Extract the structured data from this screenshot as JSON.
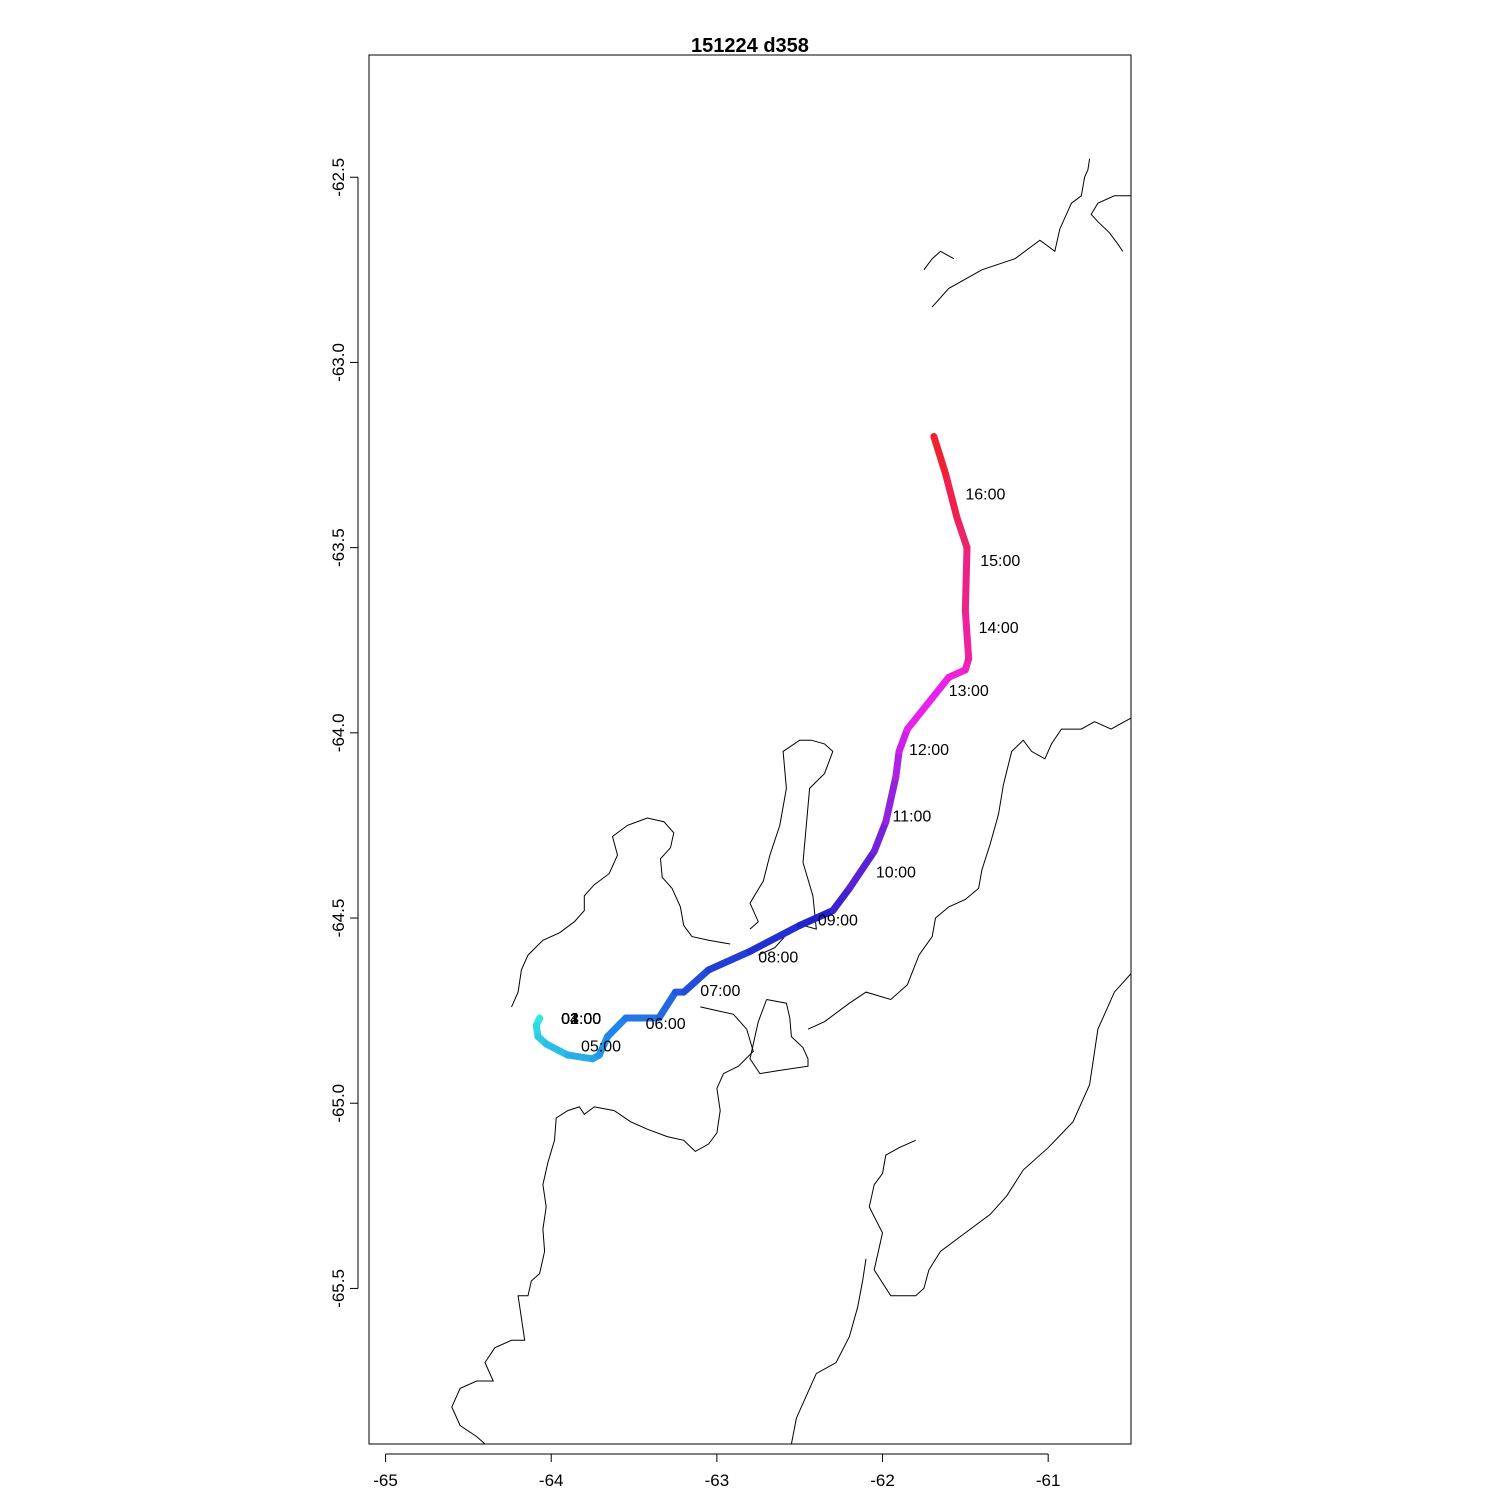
{
  "title": "151224   d358",
  "x_axis": {
    "ticks": [
      {
        "value": -65,
        "label": "-65"
      },
      {
        "value": -64,
        "label": "-64"
      },
      {
        "value": -63,
        "label": "-63"
      },
      {
        "value": -62,
        "label": "-62"
      },
      {
        "value": -61,
        "label": "-61"
      }
    ],
    "range": [
      -65.1,
      -60.5
    ]
  },
  "y_axis": {
    "ticks": [
      {
        "value": -62.5,
        "label": "-62.5"
      },
      {
        "value": -63.0,
        "label": "-63.0"
      },
      {
        "value": -63.5,
        "label": "-63.5"
      },
      {
        "value": -64.0,
        "label": "-64.0"
      },
      {
        "value": -64.5,
        "label": "-64.5"
      },
      {
        "value": -65.0,
        "label": "-65.0"
      },
      {
        "value": -65.5,
        "label": "-65.5"
      }
    ],
    "range": [
      -65.92,
      -62.17
    ]
  },
  "track": {
    "start_color": "#33eedd",
    "end_color": "#ee2222",
    "points": [
      [
        -64.07,
        -64.77
      ],
      [
        -64.09,
        -64.79
      ],
      [
        -64.08,
        -64.82
      ],
      [
        -64.03,
        -64.84
      ],
      [
        -63.9,
        -64.87
      ],
      [
        -63.75,
        -64.88
      ],
      [
        -63.71,
        -64.87
      ],
      [
        -63.66,
        -64.82
      ],
      [
        -63.55,
        -64.77
      ],
      [
        -63.35,
        -64.77
      ],
      [
        -63.25,
        -64.7
      ],
      [
        -63.2,
        -64.7
      ],
      [
        -63.05,
        -64.64
      ],
      [
        -62.8,
        -64.59
      ],
      [
        -62.5,
        -64.52
      ],
      [
        -62.3,
        -64.48
      ],
      [
        -62.2,
        -64.42
      ],
      [
        -62.05,
        -64.32
      ],
      [
        -61.98,
        -64.24
      ],
      [
        -61.92,
        -64.12
      ],
      [
        -61.9,
        -64.05
      ],
      [
        -61.85,
        -63.99
      ],
      [
        -61.6,
        -63.85
      ],
      [
        -61.5,
        -63.83
      ],
      [
        -61.48,
        -63.8
      ],
      [
        -61.5,
        -63.67
      ],
      [
        -61.49,
        -63.5
      ],
      [
        -61.55,
        -63.42
      ],
      [
        -61.62,
        -63.3
      ],
      [
        -61.69,
        -63.2
      ]
    ],
    "time_labels": [
      {
        "label": "05:00",
        "lon": -63.82,
        "lat": -64.86
      },
      {
        "label": "06:00",
        "lon": -63.43,
        "lat": -64.8
      },
      {
        "label": "07:00",
        "lon": -63.1,
        "lat": -64.71
      },
      {
        "label": "08:00",
        "lon": -62.75,
        "lat": -64.62
      },
      {
        "label": "09:00",
        "lon": -62.39,
        "lat": -64.52
      },
      {
        "label": "10:00",
        "lon": -62.04,
        "lat": -64.39
      },
      {
        "label": "11:00",
        "lon": -61.94,
        "lat": -64.24
      },
      {
        "label": "12:00",
        "lon": -61.84,
        "lat": -64.06
      },
      {
        "label": "13:00",
        "lon": -61.6,
        "lat": -63.9
      },
      {
        "label": "14:00",
        "lon": -61.42,
        "lat": -63.73
      },
      {
        "label": "15:00",
        "lon": -61.41,
        "lat": -63.55
      },
      {
        "label": "16:00",
        "lon": -61.5,
        "lat": -63.37
      }
    ],
    "overlap_labels": [
      "01:00",
      "02:00",
      "03:00",
      "04:00"
    ],
    "overlap_position": {
      "lon": -63.94,
      "lat": -64.77
    }
  },
  "coastlines": [
    [
      [
        -64.24,
        -64.74
      ],
      [
        -64.2,
        -64.7
      ],
      [
        -64.18,
        -64.64
      ],
      [
        -64.14,
        -64.6
      ],
      [
        -64.05,
        -64.56
      ],
      [
        -63.95,
        -64.54
      ],
      [
        -63.86,
        -64.51
      ],
      [
        -63.8,
        -64.48
      ],
      [
        -63.8,
        -64.44
      ],
      [
        -63.74,
        -64.41
      ],
      [
        -63.65,
        -64.38
      ],
      [
        -63.6,
        -64.33
      ],
      [
        -63.63,
        -64.28
      ],
      [
        -63.54,
        -64.25
      ],
      [
        -63.42,
        -64.23
      ],
      [
        -63.32,
        -64.24
      ],
      [
        -63.26,
        -64.27
      ],
      [
        -63.28,
        -64.31
      ],
      [
        -63.34,
        -64.34
      ],
      [
        -63.33,
        -64.39
      ],
      [
        -63.27,
        -64.42
      ],
      [
        -63.22,
        -64.47
      ],
      [
        -63.2,
        -64.52
      ],
      [
        -63.15,
        -64.55
      ],
      [
        -63.05,
        -64.56
      ],
      [
        -62.92,
        -64.57
      ]
    ],
    [
      [
        -63.1,
        -64.74
      ],
      [
        -63.0,
        -64.75
      ],
      [
        -62.9,
        -64.76
      ],
      [
        -62.82,
        -64.8
      ],
      [
        -62.78,
        -64.86
      ],
      [
        -62.87,
        -64.9
      ],
      [
        -62.96,
        -64.92
      ],
      [
        -63.0,
        -64.96
      ],
      [
        -62.98,
        -65.02
      ],
      [
        -63.0,
        -65.08
      ],
      [
        -63.05,
        -65.11
      ],
      [
        -63.13,
        -65.13
      ],
      [
        -63.2,
        -65.1
      ],
      [
        -63.3,
        -65.09
      ],
      [
        -63.42,
        -65.07
      ],
      [
        -63.52,
        -65.05
      ],
      [
        -63.62,
        -65.02
      ],
      [
        -63.74,
        -65.01
      ],
      [
        -63.8,
        -65.03
      ],
      [
        -63.83,
        -65.01
      ],
      [
        -63.9,
        -65.02
      ],
      [
        -63.97,
        -65.04
      ],
      [
        -63.98,
        -65.1
      ],
      [
        -64.02,
        -65.16
      ],
      [
        -64.05,
        -65.22
      ],
      [
        -64.03,
        -65.28
      ],
      [
        -64.05,
        -65.34
      ],
      [
        -64.04,
        -65.4
      ],
      [
        -64.07,
        -65.46
      ],
      [
        -64.12,
        -65.48
      ],
      [
        -64.14,
        -65.52
      ],
      [
        -64.2,
        -65.52
      ],
      [
        -64.18,
        -65.58
      ],
      [
        -64.16,
        -65.64
      ],
      [
        -64.24,
        -65.64
      ],
      [
        -64.34,
        -65.66
      ],
      [
        -64.4,
        -65.7
      ],
      [
        -64.35,
        -65.75
      ],
      [
        -64.45,
        -65.75
      ],
      [
        -64.55,
        -65.77
      ],
      [
        -64.6,
        -65.82
      ],
      [
        -64.55,
        -65.87
      ],
      [
        -64.45,
        -65.9
      ],
      [
        -64.4,
        -65.92
      ]
    ],
    [
      [
        -62.75,
        -64.6
      ],
      [
        -62.65,
        -64.58
      ],
      [
        -62.55,
        -64.53
      ],
      [
        -62.48,
        -64.52
      ],
      [
        -62.4,
        -64.53
      ],
      [
        -62.42,
        -64.44
      ],
      [
        -62.48,
        -64.35
      ],
      [
        -62.46,
        -64.25
      ],
      [
        -62.44,
        -64.15
      ],
      [
        -62.35,
        -64.11
      ],
      [
        -62.3,
        -64.05
      ],
      [
        -62.35,
        -64.03
      ],
      [
        -62.43,
        -64.02
      ],
      [
        -62.5,
        -64.02
      ],
      [
        -62.6,
        -64.05
      ],
      [
        -62.58,
        -64.15
      ],
      [
        -62.62,
        -64.25
      ],
      [
        -62.68,
        -64.33
      ],
      [
        -62.72,
        -64.4
      ],
      [
        -62.8,
        -64.46
      ],
      [
        -62.75,
        -64.51
      ],
      [
        -62.8,
        -64.53
      ]
    ],
    [
      [
        -62.7,
        -64.72
      ],
      [
        -62.58,
        -64.73
      ],
      [
        -62.56,
        -64.77
      ],
      [
        -62.55,
        -64.82
      ],
      [
        -62.48,
        -64.85
      ],
      [
        -62.45,
        -64.88
      ],
      [
        -62.45,
        -64.9
      ],
      [
        -62.6,
        -64.91
      ],
      [
        -62.74,
        -64.92
      ],
      [
        -62.8,
        -64.88
      ],
      [
        -62.75,
        -64.78
      ],
      [
        -62.7,
        -64.72
      ]
    ],
    [
      [
        -62.45,
        -64.8
      ],
      [
        -62.35,
        -64.78
      ],
      [
        -62.2,
        -64.73
      ],
      [
        -62.1,
        -64.7
      ],
      [
        -61.95,
        -64.72
      ],
      [
        -61.85,
        -64.68
      ],
      [
        -61.78,
        -64.6
      ],
      [
        -61.7,
        -64.55
      ],
      [
        -61.68,
        -64.5
      ],
      [
        -61.6,
        -64.47
      ],
      [
        -61.5,
        -64.45
      ],
      [
        -61.42,
        -64.42
      ],
      [
        -61.4,
        -64.37
      ],
      [
        -61.35,
        -64.3
      ],
      [
        -61.3,
        -64.22
      ],
      [
        -61.27,
        -64.14
      ],
      [
        -61.22,
        -64.05
      ],
      [
        -61.15,
        -64.02
      ],
      [
        -61.1,
        -64.05
      ],
      [
        -61.02,
        -64.07
      ],
      [
        -60.98,
        -64.03
      ],
      [
        -60.92,
        -63.99
      ],
      [
        -60.8,
        -63.99
      ],
      [
        -60.72,
        -63.97
      ],
      [
        -60.62,
        -63.99
      ],
      [
        -60.5,
        -63.96
      ]
    ],
    [
      [
        -61.7,
        -62.85
      ],
      [
        -61.6,
        -62.8
      ],
      [
        -61.4,
        -62.75
      ],
      [
        -61.2,
        -62.72
      ],
      [
        -61.05,
        -62.67
      ],
      [
        -60.96,
        -62.7
      ],
      [
        -60.93,
        -62.64
      ],
      [
        -60.86,
        -62.57
      ],
      [
        -60.8,
        -62.55
      ],
      [
        -60.78,
        -62.5
      ],
      [
        -60.76,
        -62.48
      ],
      [
        -60.75,
        -62.45
      ]
    ],
    [
      [
        -60.5,
        -62.55
      ],
      [
        -60.6,
        -62.55
      ],
      [
        -60.7,
        -62.57
      ],
      [
        -60.74,
        -62.6
      ],
      [
        -60.7,
        -62.62
      ],
      [
        -60.63,
        -62.65
      ],
      [
        -60.58,
        -62.68
      ],
      [
        -60.55,
        -62.7
      ]
    ],
    [
      [
        -61.75,
        -62.75
      ],
      [
        -61.7,
        -62.72
      ],
      [
        -61.65,
        -62.7
      ],
      [
        -61.57,
        -62.72
      ]
    ],
    [
      [
        -60.5,
        -64.65
      ],
      [
        -60.6,
        -64.7
      ],
      [
        -60.7,
        -64.8
      ],
      [
        -60.75,
        -64.95
      ],
      [
        -60.85,
        -65.05
      ],
      [
        -61.0,
        -65.12
      ],
      [
        -61.15,
        -65.18
      ],
      [
        -61.25,
        -65.25
      ],
      [
        -61.35,
        -65.3
      ],
      [
        -61.5,
        -65.35
      ],
      [
        -61.65,
        -65.4
      ],
      [
        -61.72,
        -65.45
      ],
      [
        -61.75,
        -65.5
      ],
      [
        -61.8,
        -65.52
      ],
      [
        -61.95,
        -65.52
      ],
      [
        -62.05,
        -65.45
      ],
      [
        -62.0,
        -65.35
      ],
      [
        -62.08,
        -65.28
      ],
      [
        -62.05,
        -65.22
      ],
      [
        -62.0,
        -65.19
      ],
      [
        -61.98,
        -65.14
      ],
      [
        -61.9,
        -65.12
      ],
      [
        -61.8,
        -65.1
      ]
    ],
    [
      [
        -62.55,
        -65.92
      ],
      [
        -62.52,
        -65.85
      ],
      [
        -62.45,
        -65.78
      ],
      [
        -62.4,
        -65.73
      ],
      [
        -62.28,
        -65.7
      ],
      [
        -62.2,
        -65.63
      ],
      [
        -62.15,
        -65.55
      ],
      [
        -62.12,
        -65.48
      ],
      [
        -62.1,
        -65.42
      ]
    ]
  ]
}
